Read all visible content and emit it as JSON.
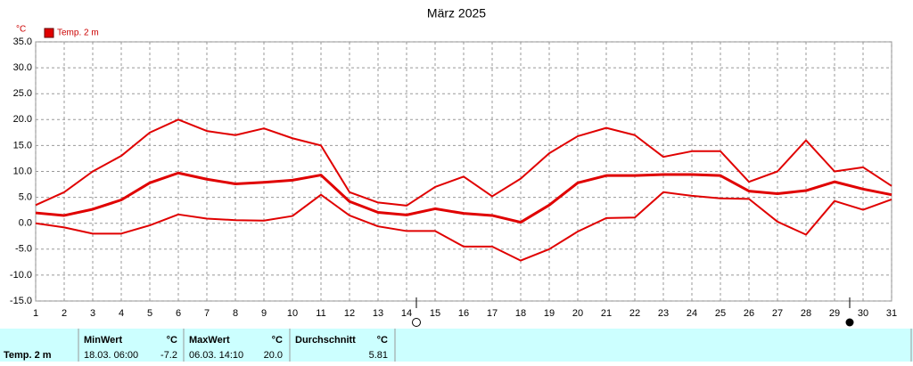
{
  "chart_data": {
    "type": "line",
    "title": "März 2025",
    "y_label": "°C",
    "x": [
      1,
      2,
      3,
      4,
      5,
      6,
      7,
      8,
      9,
      10,
      11,
      12,
      13,
      14,
      15,
      16,
      17,
      18,
      19,
      20,
      21,
      22,
      23,
      24,
      25,
      26,
      27,
      28,
      29,
      30,
      31
    ],
    "xlim": [
      1,
      31
    ],
    "xticks": [
      1,
      2,
      3,
      4,
      5,
      6,
      7,
      8,
      9,
      10,
      11,
      12,
      13,
      14,
      15,
      16,
      17,
      18,
      19,
      20,
      21,
      22,
      23,
      24,
      25,
      26,
      27,
      28,
      29,
      30,
      31
    ],
    "ylim": [
      -15,
      35
    ],
    "yticks": [
      {
        "value": -15,
        "label": "-15.0"
      },
      {
        "value": -10,
        "label": "-10.0"
      },
      {
        "value": -5,
        "label": "-5.0"
      },
      {
        "value": 0,
        "label": "0.0"
      },
      {
        "value": 5,
        "label": "5.0"
      },
      {
        "value": 10,
        "label": "10.0"
      },
      {
        "value": 15,
        "label": "15.0"
      },
      {
        "value": 20,
        "label": "20.0"
      },
      {
        "value": 25,
        "label": "25.0"
      },
      {
        "value": 30,
        "label": "30.0"
      },
      {
        "value": 35,
        "label": "35.0"
      }
    ],
    "grid": true,
    "series": [
      {
        "name": "Temp. 2 m",
        "color": "#e00000",
        "width": 3,
        "values": [
          2,
          1.5,
          2.7,
          4.5,
          7.8,
          9.7,
          8.5,
          7.6,
          7.9,
          8.3,
          9.3,
          4.2,
          2.1,
          1.6,
          2.8,
          1.9,
          1.5,
          0.2,
          3.5,
          7.8,
          9.2,
          9.2,
          9.4,
          9.4,
          9.2,
          6.2,
          5.7,
          6.3,
          8,
          6.6,
          5.5
        ]
      },
      {
        "color": "#e00000",
        "width": 2,
        "values": [
          3.5,
          6,
          10,
          13,
          17.5,
          20,
          17.8,
          17,
          18.3,
          16.4,
          15,
          6,
          4,
          3.4,
          7,
          9,
          5.2,
          8.6,
          13.5,
          16.8,
          18.4,
          17,
          12.8,
          13.9,
          13.9,
          8,
          10,
          16,
          10,
          10.8,
          7.2
        ]
      },
      {
        "color": "#e00000",
        "width": 2,
        "values": [
          0,
          -0.8,
          -2,
          -2,
          -0.4,
          1.7,
          0.9,
          0.6,
          0.5,
          1.4,
          5.5,
          1.5,
          -0.6,
          -1.5,
          -1.5,
          -4.5,
          -4.5,
          -7.2,
          -5,
          -1.6,
          1,
          1.1,
          6,
          5.3,
          4.8,
          4.7,
          0.3,
          -2.2,
          4.3,
          2.6,
          4.6
        ]
      }
    ]
  },
  "stats_table": {
    "row_label": "Temp. 2 m",
    "min": {
      "header": "MinWert",
      "unit": "°C",
      "time": "18.03.  06:00",
      "value": "-7.2"
    },
    "max": {
      "header": "MaxWert",
      "unit": "°C",
      "time": "06.03.  14:10",
      "value": "20.0"
    },
    "avg": {
      "header": "Durchschnitt",
      "unit": "°C",
      "value": "5.81"
    }
  }
}
